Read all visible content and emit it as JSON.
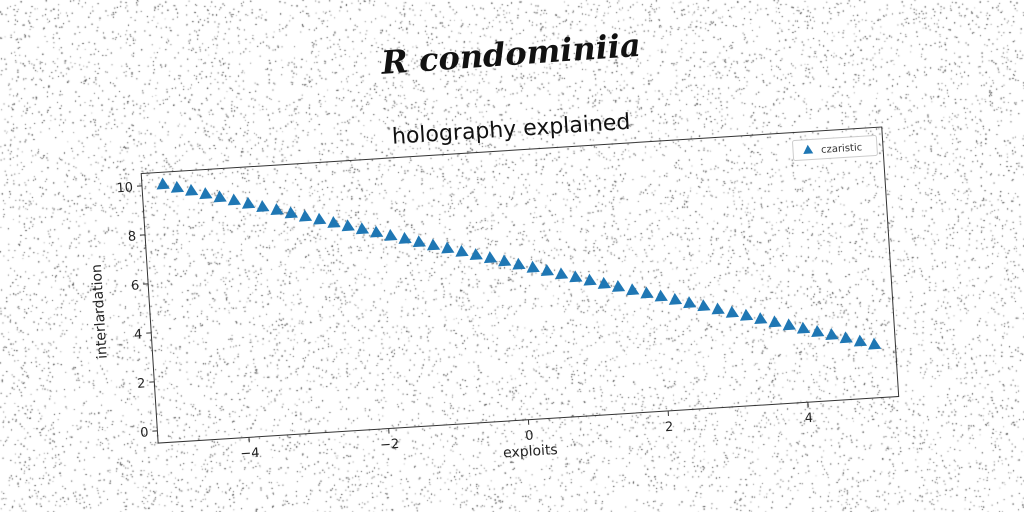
{
  "caption": "R condominiia",
  "colors": {
    "series": "#1f77b4",
    "axes": "#333333",
    "background": "#ffffff"
  },
  "chart_data": {
    "type": "scatter",
    "title": "holography explained",
    "xlabel": "exploits",
    "ylabel": "interlardation",
    "xlim": [
      -5.3,
      5.3
    ],
    "ylim": [
      -0.5,
      10.5
    ],
    "xticks": [
      -4,
      -2,
      0,
      2,
      4
    ],
    "xtick_labels": [
      "−4",
      "−2",
      "0",
      "2",
      "4"
    ],
    "yticks": [
      0,
      2,
      4,
      6,
      8,
      10
    ],
    "ytick_labels": [
      "0",
      "2",
      "4",
      "6",
      "8",
      "10"
    ],
    "grid": false,
    "legend": {
      "position": "top-right",
      "entries": [
        "czaristic"
      ]
    },
    "series": [
      {
        "name": "czaristic",
        "marker": "triangle-up",
        "x": [
          -5.0,
          -4.8,
          -4.6,
          -4.4,
          -4.2,
          -4.0,
          -3.8,
          -3.6,
          -3.4,
          -3.2,
          -3.0,
          -2.8,
          -2.6,
          -2.4,
          -2.2,
          -2.0,
          -1.8,
          -1.6,
          -1.4,
          -1.2,
          -1.0,
          -0.8,
          -0.6,
          -0.4,
          -0.2,
          0.0,
          0.2,
          0.4,
          0.6,
          0.8,
          1.0,
          1.2,
          1.4,
          1.6,
          1.8,
          2.0,
          2.2,
          2.4,
          2.6,
          2.8,
          3.0,
          3.2,
          3.4,
          3.6,
          3.8,
          4.0,
          4.2,
          4.4,
          4.6,
          4.8,
          5.0
        ],
        "y": [
          10.0,
          9.83,
          9.67,
          9.5,
          9.33,
          9.17,
          9.0,
          8.83,
          8.67,
          8.5,
          8.33,
          8.17,
          8.0,
          7.83,
          7.67,
          7.5,
          7.33,
          7.17,
          7.0,
          6.83,
          6.67,
          6.5,
          6.33,
          6.17,
          6.0,
          5.83,
          5.67,
          5.5,
          5.33,
          5.17,
          5.0,
          4.83,
          4.67,
          4.5,
          4.33,
          4.17,
          4.0,
          3.83,
          3.67,
          3.5,
          3.33,
          3.17,
          3.0,
          2.83,
          2.67,
          2.5,
          2.33,
          2.17,
          2.0,
          1.83,
          1.67
        ]
      }
    ]
  }
}
